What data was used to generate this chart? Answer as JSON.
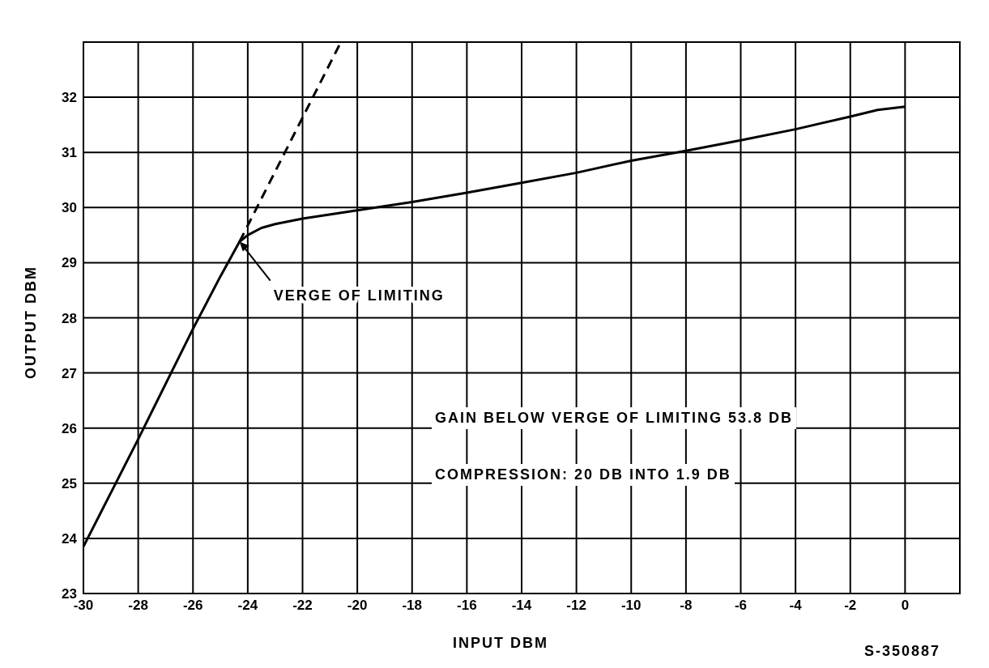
{
  "chart_data": {
    "type": "line",
    "xlabel": "INPUT DBM",
    "ylabel": "OUTPUT DBM",
    "xlim": [
      -30,
      2
    ],
    "ylim": [
      23,
      33
    ],
    "xticks": [
      -30,
      -28,
      -26,
      -24,
      -22,
      -20,
      -18,
      -16,
      -14,
      -12,
      -10,
      -8,
      -6,
      -4,
      -2,
      0
    ],
    "yticks": [
      23,
      24,
      25,
      26,
      27,
      28,
      29,
      30,
      31,
      32
    ],
    "grid": true,
    "marker": "none",
    "series": [
      {
        "color": "#000000",
        "line_style": "solid",
        "x": [
          -30,
          -28,
          -26,
          -25,
          -24.5,
          -24.3,
          -24,
          -23.5,
          -23,
          -22,
          -20,
          -18,
          -16,
          -14,
          -12,
          -10,
          -8,
          -6,
          -4,
          -2,
          -1,
          0
        ],
        "values": [
          23.85,
          25.8,
          27.8,
          28.75,
          29.2,
          29.38,
          29.5,
          29.63,
          29.7,
          29.8,
          29.95,
          30.1,
          30.27,
          30.45,
          30.63,
          30.85,
          31.03,
          31.22,
          31.42,
          31.65,
          31.77,
          31.83
        ]
      },
      {
        "color": "#000000",
        "line_style": "dashed",
        "x": [
          -24.3,
          -20.6
        ],
        "values": [
          29.38,
          33
        ]
      }
    ],
    "annotations": [
      {
        "text": "VERGE OF LIMITING",
        "x": -24.3,
        "y": 29.38
      },
      "GAIN BELOW VERGE OF LIMITING 53.8 DB",
      "COMPRESSION: 20 DB INTO 1.9 DB",
      "S-350887"
    ]
  }
}
